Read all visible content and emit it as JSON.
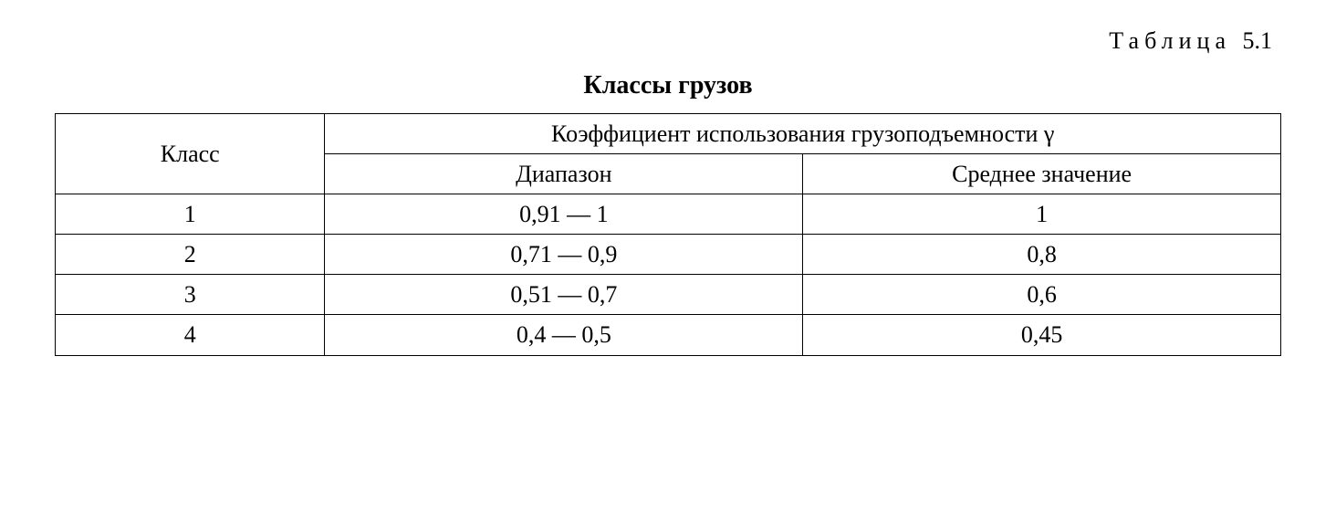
{
  "label_word": "Таблица",
  "label_num": "5.1",
  "title": "Классы грузов",
  "table": {
    "type": "table",
    "background_color": "#ffffff",
    "border_color": "#000000",
    "font_family": "Times New Roman",
    "header_fontsize": 26,
    "cell_fontsize": 26,
    "border_width": 1.5,
    "column_widths_pct": [
      22,
      39,
      39
    ],
    "columns": {
      "col1": "Класс",
      "col2_span": "Коэффициент использования грузоподъемности  γ",
      "col2a": "Диапазон",
      "col2b": "Среднее значение"
    },
    "rows": [
      {
        "class": "1",
        "range": "0,91 — 1",
        "avg": "1"
      },
      {
        "class": "2",
        "range": "0,71 — 0,9",
        "avg": "0,8"
      },
      {
        "class": "3",
        "range": "0,51 — 0,7",
        "avg": "0,6"
      },
      {
        "class": "4",
        "range": "0,4 — 0,5",
        "avg": "0,45"
      }
    ]
  }
}
